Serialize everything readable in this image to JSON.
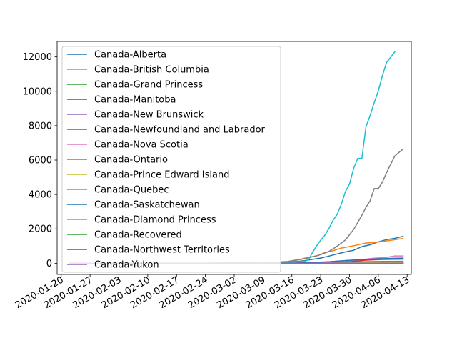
{
  "chart_data": {
    "type": "line",
    "title": "",
    "xlabel": "",
    "ylabel": "",
    "x_axis": {
      "type": "date",
      "range": [
        "2020-01-19",
        "2020-04-14"
      ],
      "tick_labels": [
        "2020-01-20",
        "2020-01-27",
        "2020-02-03",
        "2020-02-10",
        "2020-02-17",
        "2020-02-24",
        "2020-03-02",
        "2020-03-09",
        "2020-03-16",
        "2020-03-23",
        "2020-03-30",
        "2020-04-06",
        "2020-04-13"
      ]
    },
    "y_axis": {
      "range": [
        -650,
        12900
      ],
      "ticks": [
        0,
        2000,
        4000,
        6000,
        8000,
        10000,
        12000
      ]
    },
    "grid": false,
    "legend_position": "upper-left",
    "series": [
      {
        "name": "Canada-Alberta",
        "color": "#1f77b4",
        "points": [
          [
            "2020-01-22",
            0
          ],
          [
            "2020-03-05",
            1
          ],
          [
            "2020-03-10",
            14
          ],
          [
            "2020-03-13",
            29
          ],
          [
            "2020-03-15",
            56
          ],
          [
            "2020-03-17",
            97
          ],
          [
            "2020-03-19",
            146
          ],
          [
            "2020-03-21",
            226
          ],
          [
            "2020-03-23",
            301
          ],
          [
            "2020-03-25",
            419
          ],
          [
            "2020-03-27",
            542
          ],
          [
            "2020-03-29",
            661
          ],
          [
            "2020-03-31",
            754
          ],
          [
            "2020-04-02",
            968
          ],
          [
            "2020-04-04",
            1075
          ],
          [
            "2020-04-06",
            1250
          ],
          [
            "2020-04-08",
            1373
          ],
          [
            "2020-04-10",
            1451
          ],
          [
            "2020-04-12",
            1569
          ]
        ]
      },
      {
        "name": "Canada-British Columbia",
        "color": "#ff7f0e",
        "points": [
          [
            "2020-01-22",
            0
          ],
          [
            "2020-01-28",
            1
          ],
          [
            "2020-02-05",
            4
          ],
          [
            "2020-03-01",
            8
          ],
          [
            "2020-03-07",
            27
          ],
          [
            "2020-03-11",
            39
          ],
          [
            "2020-03-14",
            64
          ],
          [
            "2020-03-16",
            103
          ],
          [
            "2020-03-18",
            231
          ],
          [
            "2020-03-20",
            348
          ],
          [
            "2020-03-22",
            424
          ],
          [
            "2020-03-24",
            617
          ],
          [
            "2020-03-26",
            725
          ],
          [
            "2020-03-28",
            884
          ],
          [
            "2020-03-30",
            970
          ],
          [
            "2020-04-01",
            1066
          ],
          [
            "2020-04-03",
            1174
          ],
          [
            "2020-04-05",
            1203
          ],
          [
            "2020-04-07",
            1266
          ],
          [
            "2020-04-09",
            1336
          ],
          [
            "2020-04-12",
            1445
          ]
        ]
      },
      {
        "name": "Canada-Grand Princess",
        "color": "#2ca02c",
        "points": [
          [
            "2020-01-22",
            0
          ],
          [
            "2020-03-09",
            0
          ],
          [
            "2020-03-12",
            2
          ],
          [
            "2020-03-20",
            10
          ],
          [
            "2020-04-12",
            13
          ]
        ]
      },
      {
        "name": "Canada-Manitoba",
        "color": "#d62728",
        "points": [
          [
            "2020-01-22",
            0
          ],
          [
            "2020-03-12",
            0
          ],
          [
            "2020-03-14",
            4
          ],
          [
            "2020-03-18",
            15
          ],
          [
            "2020-03-22",
            20
          ],
          [
            "2020-03-26",
            39
          ],
          [
            "2020-03-30",
            96
          ],
          [
            "2020-04-03",
            182
          ],
          [
            "2020-04-07",
            221
          ],
          [
            "2020-04-12",
            242
          ]
        ]
      },
      {
        "name": "Canada-New Brunswick",
        "color": "#9467bd",
        "points": [
          [
            "2020-01-22",
            0
          ],
          [
            "2020-03-11",
            0
          ],
          [
            "2020-03-14",
            1
          ],
          [
            "2020-03-18",
            11
          ],
          [
            "2020-03-22",
            17
          ],
          [
            "2020-03-26",
            45
          ],
          [
            "2020-03-30",
            70
          ],
          [
            "2020-04-03",
            95
          ],
          [
            "2020-04-07",
            108
          ],
          [
            "2020-04-12",
            116
          ]
        ]
      },
      {
        "name": "Canada-Newfoundland and Labrador",
        "color": "#8c564b",
        "points": [
          [
            "2020-01-22",
            0
          ],
          [
            "2020-03-14",
            0
          ],
          [
            "2020-03-16",
            1
          ],
          [
            "2020-03-19",
            6
          ],
          [
            "2020-03-22",
            24
          ],
          [
            "2020-03-26",
            102
          ],
          [
            "2020-03-30",
            175
          ],
          [
            "2020-04-03",
            217
          ],
          [
            "2020-04-07",
            232
          ],
          [
            "2020-04-12",
            244
          ]
        ]
      },
      {
        "name": "Canada-Nova Scotia",
        "color": "#e377c2",
        "points": [
          [
            "2020-01-22",
            0
          ],
          [
            "2020-03-14",
            0
          ],
          [
            "2020-03-16",
            5
          ],
          [
            "2020-03-20",
            21
          ],
          [
            "2020-03-24",
            68
          ],
          [
            "2020-03-28",
            122
          ],
          [
            "2020-04-01",
            193
          ],
          [
            "2020-04-05",
            293
          ],
          [
            "2020-04-08",
            342
          ],
          [
            "2020-04-10",
            428
          ],
          [
            "2020-04-12",
            428
          ]
        ]
      },
      {
        "name": "Canada-Ontario",
        "color": "#7f7f7f",
        "points": [
          [
            "2020-01-22",
            0
          ],
          [
            "2020-01-26",
            1
          ],
          [
            "2020-02-01",
            4
          ],
          [
            "2020-02-20",
            3
          ],
          [
            "2020-03-01",
            20
          ],
          [
            "2020-03-06",
            28
          ],
          [
            "2020-03-09",
            34
          ],
          [
            "2020-03-11",
            41
          ],
          [
            "2020-03-13",
            79
          ],
          [
            "2020-03-15",
            103
          ],
          [
            "2020-03-17",
            185
          ],
          [
            "2020-03-19",
            258
          ],
          [
            "2020-03-21",
            377
          ],
          [
            "2020-03-23",
            503
          ],
          [
            "2020-03-25",
            688
          ],
          [
            "2020-03-27",
            993
          ],
          [
            "2020-03-29",
            1355
          ],
          [
            "2020-03-31",
            1966
          ],
          [
            "2020-04-02",
            2793
          ],
          [
            "2020-04-03",
            3255
          ],
          [
            "2020-04-04",
            3630
          ],
          [
            "2020-04-05",
            4347
          ],
          [
            "2020-04-06",
            4347
          ],
          [
            "2020-04-07",
            4726
          ],
          [
            "2020-04-08",
            5276
          ],
          [
            "2020-04-09",
            5759
          ],
          [
            "2020-04-10",
            6237
          ],
          [
            "2020-04-12",
            6648
          ]
        ]
      },
      {
        "name": "Canada-Prince Edward Island",
        "color": "#bcbd22",
        "points": [
          [
            "2020-01-22",
            0
          ],
          [
            "2020-03-14",
            0
          ],
          [
            "2020-03-15",
            1
          ],
          [
            "2020-03-20",
            3
          ],
          [
            "2020-03-26",
            11
          ],
          [
            "2020-04-01",
            21
          ],
          [
            "2020-04-06",
            22
          ],
          [
            "2020-04-12",
            25
          ]
        ]
      },
      {
        "name": "Canada-Quebec",
        "color": "#17becf",
        "points": [
          [
            "2020-01-22",
            0
          ],
          [
            "2020-03-05",
            1
          ],
          [
            "2020-03-11",
            13
          ],
          [
            "2020-03-13",
            24
          ],
          [
            "2020-03-15",
            50
          ],
          [
            "2020-03-17",
            74
          ],
          [
            "2020-03-19",
            121
          ],
          [
            "2020-03-20",
            181
          ],
          [
            "2020-03-21",
            628
          ],
          [
            "2020-03-22",
            1013
          ],
          [
            "2020-03-23",
            1339
          ],
          [
            "2020-03-24",
            1629
          ],
          [
            "2020-03-25",
            2024
          ],
          [
            "2020-03-26",
            2498
          ],
          [
            "2020-03-27",
            2840
          ],
          [
            "2020-03-28",
            3430
          ],
          [
            "2020-03-29",
            4162
          ],
          [
            "2020-03-30",
            4611
          ],
          [
            "2020-03-31",
            5518
          ],
          [
            "2020-04-01",
            6101
          ],
          [
            "2020-04-02",
            6101
          ],
          [
            "2020-04-03",
            7944
          ],
          [
            "2020-04-04",
            8580
          ],
          [
            "2020-04-05",
            9340
          ],
          [
            "2020-04-06",
            10031
          ],
          [
            "2020-04-07",
            10912
          ],
          [
            "2020-04-08",
            11677
          ],
          [
            "2020-04-10",
            12292
          ]
        ]
      },
      {
        "name": "Canada-Saskatchewan",
        "color": "#1f77b4",
        "points": [
          [
            "2020-01-22",
            0
          ],
          [
            "2020-03-11",
            0
          ],
          [
            "2020-03-13",
            2
          ],
          [
            "2020-03-17",
            16
          ],
          [
            "2020-03-21",
            52
          ],
          [
            "2020-03-25",
            86
          ],
          [
            "2020-03-29",
            156
          ],
          [
            "2020-04-02",
            220
          ],
          [
            "2020-04-06",
            260
          ],
          [
            "2020-04-09",
            285
          ],
          [
            "2020-04-12",
            300
          ]
        ]
      },
      {
        "name": "Canada-Diamond Princess",
        "color": "#ff7f0e",
        "points": [
          [
            "2020-01-22",
            0
          ],
          [
            "2020-03-09",
            0
          ],
          [
            "2020-03-10",
            0
          ],
          [
            "2020-04-12",
            0
          ]
        ]
      },
      {
        "name": "Canada-Recovered",
        "color": "#2ca02c",
        "points": [
          [
            "2020-01-22",
            0
          ],
          [
            "2020-03-09",
            0
          ],
          [
            "2020-03-16",
            0
          ],
          [
            "2020-04-12",
            0
          ]
        ]
      },
      {
        "name": "Canada-Northwest Territories",
        "color": "#d62728",
        "points": [
          [
            "2020-01-22",
            0
          ],
          [
            "2020-03-20",
            0
          ],
          [
            "2020-03-22",
            1
          ],
          [
            "2020-04-12",
            5
          ]
        ]
      },
      {
        "name": "Canada-Yukon",
        "color": "#9467bd",
        "points": [
          [
            "2020-01-22",
            0
          ],
          [
            "2020-03-21",
            0
          ],
          [
            "2020-03-22",
            2
          ],
          [
            "2020-04-12",
            8
          ]
        ]
      }
    ]
  }
}
